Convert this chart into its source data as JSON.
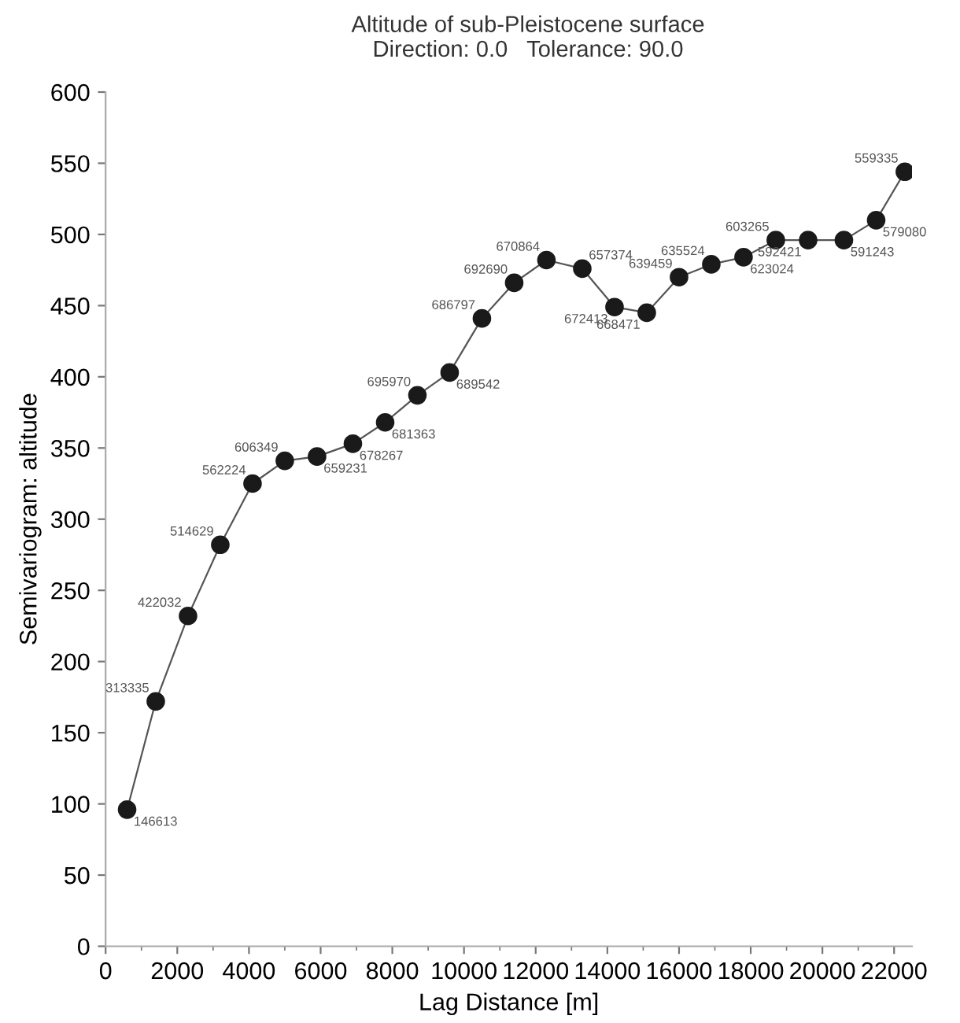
{
  "chart_data": {
    "type": "line",
    "title": "Altitude of sub-Pleistocene surface",
    "subtitle": "Direction: 0.0   Tolerance: 90.0",
    "xlabel": "Lag Distance [m]",
    "ylabel": "Semivariogram: altitude",
    "x": [
      600,
      1400,
      2300,
      3200,
      4100,
      5000,
      5900,
      6900,
      7800,
      8700,
      9600,
      10500,
      11400,
      12300,
      13300,
      14200,
      15100,
      16000,
      16900,
      17800,
      18700,
      19600,
      20600,
      21500,
      22300
    ],
    "series": [
      {
        "color": "#1a1a1a",
        "values": [
          96,
          172,
          232,
          282,
          325,
          341,
          344,
          353,
          368,
          387,
          403,
          441,
          466,
          482,
          476,
          449,
          445,
          470,
          479,
          484,
          496,
          496,
          496,
          510,
          544
        ]
      }
    ],
    "annotations": [
      {
        "text": "146613",
        "x": 600,
        "y": 96
      },
      {
        "text": "313335",
        "x": 1400,
        "y": 172
      },
      {
        "text": "422032",
        "x": 2300,
        "y": 232
      },
      {
        "text": "514629",
        "x": 3200,
        "y": 282
      },
      {
        "text": "562224",
        "x": 4100,
        "y": 325
      },
      {
        "text": "606349",
        "x": 5000,
        "y": 341
      },
      {
        "text": "659231",
        "x": 5900,
        "y": 344
      },
      {
        "text": "678267",
        "x": 6900,
        "y": 353
      },
      {
        "text": "681363",
        "x": 7800,
        "y": 368
      },
      {
        "text": "695970",
        "x": 8700,
        "y": 387
      },
      {
        "text": "689542",
        "x": 9600,
        "y": 403
      },
      {
        "text": "686797",
        "x": 10500,
        "y": 441
      },
      {
        "text": "692690",
        "x": 11400,
        "y": 466
      },
      {
        "text": "670864",
        "x": 12300,
        "y": 482
      },
      {
        "text": "657374",
        "x": 13300,
        "y": 476
      },
      {
        "text": "672413",
        "x": 14200,
        "y": 449
      },
      {
        "text": "668471",
        "x": 15100,
        "y": 445
      },
      {
        "text": "639459",
        "x": 16000,
        "y": 470
      },
      {
        "text": "635524",
        "x": 16900,
        "y": 479
      },
      {
        "text": "623024",
        "x": 17800,
        "y": 484
      },
      {
        "text": "603265",
        "x": 18700,
        "y": 496
      },
      {
        "text": "592421",
        "x": 19600,
        "y": 496
      },
      {
        "text": "591243",
        "x": 20600,
        "y": 496
      },
      {
        "text": "579080",
        "x": 21500,
        "y": 510
      },
      {
        "text": "559335",
        "x": 22300,
        "y": 544
      }
    ],
    "xlim": [
      0,
      22500
    ],
    "ylim": [
      0,
      600
    ],
    "xticks": [
      0,
      2000,
      4000,
      6000,
      8000,
      10000,
      12000,
      14000,
      16000,
      18000,
      20000,
      22000
    ],
    "yticks": [
      0,
      50,
      100,
      150,
      200,
      250,
      300,
      350,
      400,
      450,
      500,
      550,
      600
    ],
    "grid": false,
    "legend": false,
    "marker": "circle",
    "line_style": "solid"
  }
}
